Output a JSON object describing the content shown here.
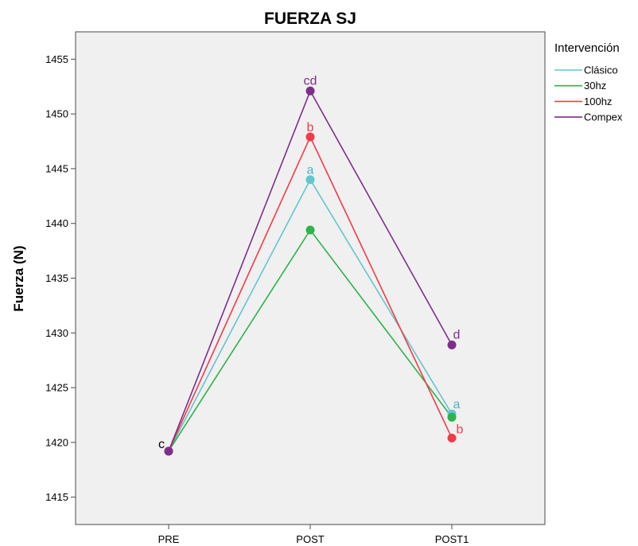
{
  "chart_data": {
    "type": "line",
    "title": "FUERZA SJ",
    "xlabel": "",
    "ylabel": "Fuerza (N)",
    "categories": [
      "PRE",
      "POST",
      "POST1"
    ],
    "ylim": [
      1412.5,
      1457.5
    ],
    "yticks": [
      1415,
      1420,
      1425,
      1430,
      1435,
      1440,
      1445,
      1450,
      1455
    ],
    "grid": false,
    "legend": {
      "title": "Intervención",
      "position": "right"
    },
    "series": [
      {
        "name": "Clásico",
        "color": "#62c6cf",
        "values": [
          1419.2,
          1444.0,
          1422.6
        ]
      },
      {
        "name": "30hz",
        "color": "#2db34a",
        "values": [
          1419.2,
          1439.4,
          1422.3
        ]
      },
      {
        "name": "100hz",
        "color": "#f23b48",
        "values": [
          1419.2,
          1447.9,
          1420.4
        ]
      },
      {
        "name": "Compex",
        "color": "#7e2e8a",
        "values": [
          1419.2,
          1452.1,
          1428.9
        ]
      }
    ],
    "annotations": [
      {
        "text": "c",
        "category": "PRE",
        "y": 1419.2,
        "color": "#000000"
      },
      {
        "text": "cd",
        "category": "POST",
        "y": 1452.1,
        "color": "#7e2e8a"
      },
      {
        "text": "b",
        "category": "POST",
        "y": 1447.9,
        "color": "#f23b48"
      },
      {
        "text": "a",
        "category": "POST",
        "y": 1444.0,
        "color": "#4fb3c9"
      },
      {
        "text": "d",
        "category": "POST1",
        "y": 1428.9,
        "color": "#7e2e8a"
      },
      {
        "text": "a",
        "category": "POST1",
        "y": 1422.6,
        "color": "#4fb3c9"
      },
      {
        "text": "b",
        "category": "POST1",
        "y": 1420.4,
        "color": "#f23b48"
      }
    ],
    "plot_background": "#f0f0f0"
  }
}
